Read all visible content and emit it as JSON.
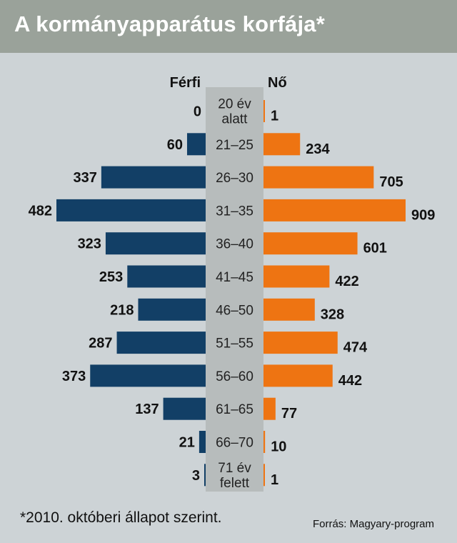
{
  "title": "A kormányapparátus korfája*",
  "footnote": "*2010. októberi állapot szerint.",
  "source": "Forrás: Magyary-program",
  "colors": {
    "background": "#cdd3d6",
    "title_bar": "#9aa29a",
    "male": "#123f66",
    "female": "#ee7412",
    "center_band": "#b7bcbc"
  },
  "chart_data": {
    "type": "bar",
    "orientation": "horizontal-population-pyramid",
    "categories": [
      [
        "20 év",
        "alatt"
      ],
      [
        "21–25"
      ],
      [
        "26–30"
      ],
      [
        "31–35"
      ],
      [
        "36–40"
      ],
      [
        "41–45"
      ],
      [
        "46–50"
      ],
      [
        "51–55"
      ],
      [
        "56–60"
      ],
      [
        "61–65"
      ],
      [
        "66–70"
      ],
      [
        "71 év",
        "felett"
      ]
    ],
    "series": [
      {
        "name": "Férfi",
        "side": "left",
        "values": [
          0,
          60,
          337,
          482,
          323,
          253,
          218,
          287,
          373,
          137,
          21,
          3
        ]
      },
      {
        "name": "Nő",
        "side": "right",
        "values": [
          1,
          234,
          705,
          909,
          601,
          422,
          328,
          474,
          442,
          77,
          10,
          1
        ]
      }
    ]
  }
}
